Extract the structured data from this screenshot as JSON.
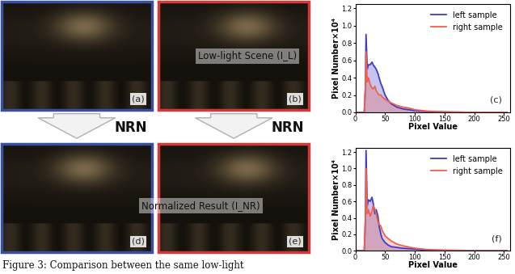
{
  "images": [
    {
      "label": "(a)",
      "color": "#3b4fa0"
    },
    {
      "label": "(b)",
      "color": "#d23a3a"
    },
    {
      "label": "(d)",
      "color": "#3b4fa0"
    },
    {
      "label": "(e)",
      "color": "#d23a3a"
    }
  ],
  "top_text": "Low-light Scene (I_L)",
  "bottom_text": "Normalized Result (I_NR)",
  "arrow_label": "NRN",
  "caption": "Figure 3: Comparison between the same low-light",
  "chart_data": [
    {
      "type": "line",
      "panel_label": "(c)",
      "legend": "upper right",
      "x_label": "Pixel Value",
      "y_label": "Pixel Number×10⁴",
      "x": [
        0,
        10,
        15,
        17,
        18,
        20,
        22,
        25,
        28,
        30,
        33,
        35,
        38,
        40,
        43,
        45,
        50,
        55,
        60,
        70,
        80,
        90,
        100,
        120,
        150,
        200,
        255
      ],
      "xlim": [
        0,
        260
      ],
      "xticks": [
        0,
        50,
        100,
        150,
        200,
        250
      ],
      "ylim": [
        0,
        1.25
      ],
      "yticks": [
        {
          "value": 0,
          "label": "0.0"
        },
        {
          "value": 0.2,
          "label": "0.2"
        },
        {
          "value": 0.4,
          "label": "0.4"
        },
        {
          "value": 0.6,
          "label": "0.6"
        },
        {
          "value": 0.8,
          "label": "0.8"
        },
        {
          "value": 1.0,
          "label": "1.0"
        },
        {
          "value": 1.2,
          "label": "1.2"
        }
      ],
      "series": [
        {
          "name": "left sample",
          "color": "#3c3cc8",
          "values": [
            0,
            0,
            0,
            0.3,
            0.9,
            0.5,
            0.55,
            0.55,
            0.58,
            0.55,
            0.52,
            0.5,
            0.45,
            0.4,
            0.33,
            0.3,
            0.2,
            0.14,
            0.1,
            0.06,
            0.04,
            0.03,
            0.02,
            0.01,
            0.004,
            0,
            0
          ]
        },
        {
          "name": "right sample",
          "color": "#f06050",
          "values": [
            0,
            0,
            0,
            0.3,
            0.7,
            0.35,
            0.4,
            0.32,
            0.28,
            0.27,
            0.3,
            0.25,
            0.22,
            0.2,
            0.2,
            0.18,
            0.15,
            0.13,
            0.11,
            0.08,
            0.06,
            0.05,
            0.03,
            0.015,
            0.005,
            0,
            0
          ]
        }
      ]
    },
    {
      "type": "line",
      "panel_label": "(f)",
      "legend": "upper right",
      "x_label": "Pixel Value",
      "y_label": "Pixel Number×10⁴",
      "x": [
        0,
        10,
        15,
        17,
        18,
        20,
        22,
        25,
        28,
        30,
        33,
        35,
        38,
        40,
        43,
        45,
        50,
        55,
        60,
        70,
        80,
        90,
        100,
        120,
        150,
        200,
        255
      ],
      "xlim": [
        0,
        260
      ],
      "xticks": [
        0,
        50,
        100,
        150,
        200,
        250
      ],
      "ylim": [
        0,
        1.25
      ],
      "yticks": [
        {
          "value": 0,
          "label": "0.0"
        },
        {
          "value": 0.2,
          "label": "0.2"
        },
        {
          "value": 0.4,
          "label": "0.4"
        },
        {
          "value": 0.6,
          "label": "0.6"
        },
        {
          "value": 0.8,
          "label": "0.8"
        },
        {
          "value": 1.0,
          "label": "1.0"
        },
        {
          "value": 1.2,
          "label": "1.2"
        }
      ],
      "series": [
        {
          "name": "left sample",
          "color": "#3c3cc8",
          "values": [
            0,
            0,
            0,
            0.4,
            1.22,
            0.55,
            0.62,
            0.6,
            0.65,
            0.58,
            0.45,
            0.5,
            0.42,
            0.3,
            0.2,
            0.15,
            0.1,
            0.07,
            0.05,
            0.04,
            0.03,
            0.025,
            0.02,
            0.005,
            0,
            0,
            0
          ]
        },
        {
          "name": "right sample",
          "color": "#f06050",
          "values": [
            0,
            0,
            0,
            0.4,
            1.0,
            0.45,
            0.5,
            0.42,
            0.48,
            0.55,
            0.5,
            0.45,
            0.35,
            0.32,
            0.3,
            0.25,
            0.18,
            0.15,
            0.12,
            0.08,
            0.06,
            0.045,
            0.03,
            0.015,
            0.008,
            0,
            0
          ]
        }
      ]
    }
  ]
}
